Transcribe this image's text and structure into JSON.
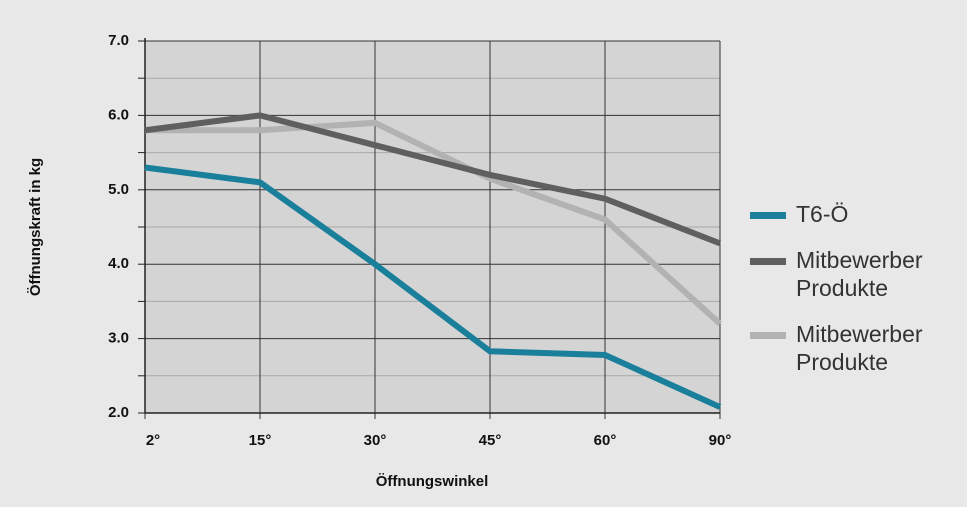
{
  "chart_data": {
    "type": "line",
    "x_label": "Öffnungswinkel",
    "y_label": "Öffnungskraft in kg",
    "categories": [
      "2°",
      "15°",
      "30°",
      "45°",
      "60°",
      "90°"
    ],
    "series": [
      {
        "name": "T6-Ö",
        "color": "#1a7f9b",
        "values": [
          5.3,
          5.1,
          4.0,
          2.83,
          2.78,
          2.08
        ]
      },
      {
        "name": "Mitbewerber Produkte",
        "color": "#5f5f5f",
        "values": [
          5.8,
          6.0,
          5.6,
          5.2,
          4.88,
          4.28
        ]
      },
      {
        "name": "Mitbewerber Produkte",
        "color": "#b2b2b2",
        "values": [
          5.8,
          5.8,
          5.9,
          5.15,
          4.6,
          3.2
        ]
      }
    ],
    "ylim": [
      2,
      7
    ],
    "yticks": [
      {
        "value": 2,
        "label": "2.0"
      },
      {
        "value": 3,
        "label": "3.0"
      },
      {
        "value": 4,
        "label": "4.0"
      },
      {
        "value": 5,
        "label": "5.0"
      },
      {
        "value": 6,
        "label": "6.0"
      },
      {
        "value": 7,
        "label": "7.0"
      }
    ],
    "minor_yticks": [
      2.5,
      3.5,
      4.5,
      5.5,
      6.5
    ],
    "grid": true,
    "legend": "right"
  }
}
